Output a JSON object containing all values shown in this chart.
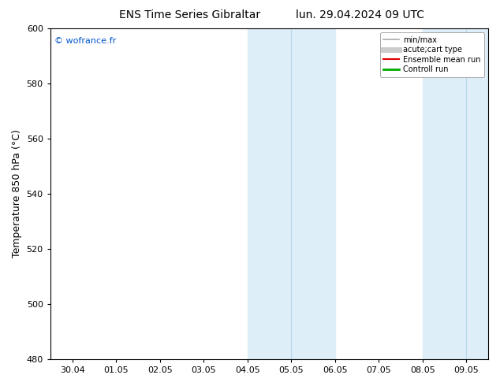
{
  "title_left": "ENS Time Series Gibraltar",
  "title_right": "lun. 29.04.2024 09 UTC",
  "ylabel": "Temperature 850 hPa (°C)",
  "ylim": [
    480,
    600
  ],
  "yticks": [
    480,
    500,
    520,
    540,
    560,
    580,
    600
  ],
  "xtick_labels": [
    "30.04",
    "01.05",
    "02.05",
    "03.05",
    "04.05",
    "05.05",
    "06.05",
    "07.05",
    "08.05",
    "09.05"
  ],
  "xtick_positions": [
    0,
    1,
    2,
    3,
    4,
    5,
    6,
    7,
    8,
    9
  ],
  "xlim": [
    -0.5,
    9.5
  ],
  "shaded_bands": [
    {
      "xmin": 4.0,
      "xmax": 5.0,
      "color": "#ddeef8"
    },
    {
      "xmin": 5.0,
      "xmax": 6.0,
      "color": "#ddeef8"
    },
    {
      "xmin": 8.0,
      "xmax": 9.0,
      "color": "#ddeef8"
    },
    {
      "xmin": 9.0,
      "xmax": 9.5,
      "color": "#ddeef8"
    }
  ],
  "divider_lines": [
    5.0,
    9.0
  ],
  "watermark": "© wofrance.fr",
  "watermark_color": "#0055cc",
  "background_color": "#ffffff",
  "plot_bg_color": "#ffffff",
  "shade_color": "#ddeef8",
  "divider_color": "#b8d8ee",
  "legend_entries": [
    {
      "label": "min/max",
      "color": "#aaaaaa",
      "lw": 1.2,
      "type": "line"
    },
    {
      "label": "acute;cart type",
      "color": "#cccccc",
      "lw": 5,
      "type": "line"
    },
    {
      "label": "Ensemble mean run",
      "color": "#dd0000",
      "lw": 1.5,
      "type": "line"
    },
    {
      "label": "Controll run",
      "color": "#00aa00",
      "lw": 2,
      "type": "line"
    }
  ],
  "title_fontsize": 10,
  "ylabel_fontsize": 9,
  "tick_fontsize": 8,
  "watermark_fontsize": 8,
  "legend_fontsize": 7
}
